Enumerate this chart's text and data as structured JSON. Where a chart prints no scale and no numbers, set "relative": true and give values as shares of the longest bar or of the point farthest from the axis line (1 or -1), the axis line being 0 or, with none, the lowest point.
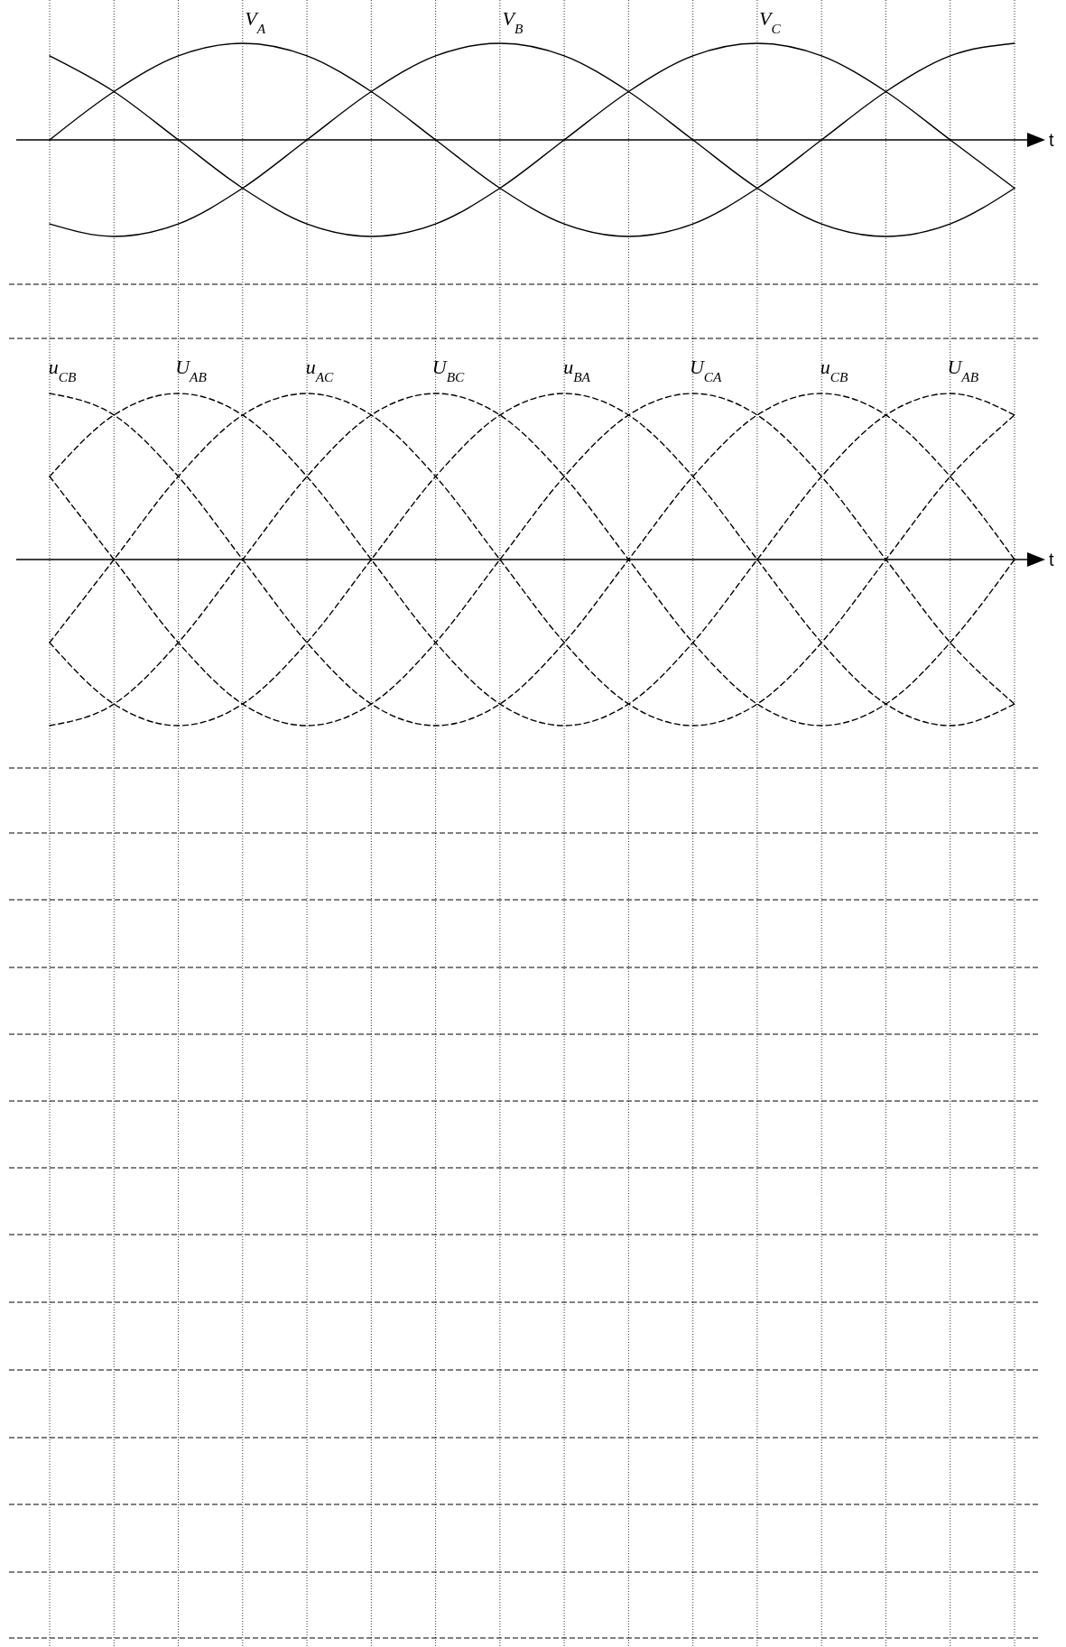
{
  "chart_data": [
    {
      "type": "line",
      "relative": true,
      "xlabel": "t",
      "grid": "x",
      "line_style": "solid",
      "marker": "none",
      "categories": [
        null,
        null,
        null,
        null,
        null,
        null,
        null,
        null,
        null,
        null,
        null,
        null,
        null,
        null,
        null,
        null
      ],
      "series": [
        {
          "name": "V$_{A}$",
          "color": "#000000",
          "values": [
            0,
            0.5,
            0.87,
            1,
            0.87,
            0.5,
            0,
            -0.5,
            -0.87,
            -1,
            -0.87,
            -0.5,
            0,
            0.5,
            0.87,
            1
          ]
        },
        {
          "name": "V$_{B}$",
          "color": "#000000",
          "values": [
            -0.87,
            -1,
            -0.87,
            -0.5,
            0,
            0.5,
            0.87,
            1,
            0.87,
            0.5,
            0,
            -0.5,
            -0.87,
            -1,
            -0.87,
            -0.5
          ]
        },
        {
          "name": "V$_{C}$",
          "color": "#000000",
          "values": [
            0.87,
            0.5,
            0,
            -0.5,
            -0.87,
            -1,
            -0.87,
            -0.5,
            0,
            0.5,
            0.87,
            1,
            0.87,
            0.5,
            0,
            -0.5
          ]
        }
      ]
    },
    {
      "type": "line",
      "relative": true,
      "xlabel": "t",
      "grid": "x",
      "line_style": "dashed",
      "marker": "none",
      "categories": [
        null,
        null,
        null,
        null,
        null,
        null,
        null,
        null,
        null,
        null,
        null,
        null,
        null,
        null,
        null,
        null
      ],
      "series": [
        {
          "name": "u$_{CB}$",
          "color": "#000000",
          "values": [
            1,
            0.87,
            0.5,
            0,
            -0.5,
            -0.87,
            -1,
            -0.87,
            -0.5,
            0,
            0.5,
            0.87,
            1,
            0.87,
            0.5,
            0
          ]
        },
        {
          "name": "U$_{AB}$",
          "color": "#000000",
          "values": [
            0.5,
            0.87,
            1,
            0.87,
            0.5,
            0,
            -0.5,
            -0.87,
            -1,
            -0.87,
            -0.5,
            0,
            0.5,
            0.87,
            1,
            0.87
          ]
        },
        {
          "name": "u$_{AC}$",
          "color": "#000000",
          "values": [
            -0.5,
            0,
            0.5,
            0.87,
            1,
            0.87,
            0.5,
            0,
            -0.5,
            -0.87,
            -1,
            -0.87,
            -0.5,
            0,
            0.5,
            0.87
          ]
        },
        {
          "name": "U$_{BC}$",
          "color": "#000000",
          "values": [
            -1,
            -0.87,
            -0.5,
            0,
            0.5,
            0.87,
            1,
            0.87,
            0.5,
            0,
            -0.5,
            -0.87,
            -1,
            -0.87,
            -0.5,
            0
          ]
        },
        {
          "name": "u$_{BA}$",
          "color": "#000000",
          "values": [
            -0.5,
            -0.87,
            -1,
            -0.87,
            -0.5,
            0,
            0.5,
            0.87,
            1,
            0.87,
            0.5,
            0,
            -0.5,
            -0.87,
            -1,
            -0.87
          ]
        },
        {
          "name": "U$_{CA}$",
          "color": "#000000",
          "values": [
            0.5,
            0,
            -0.5,
            -0.87,
            -1,
            -0.87,
            -0.5,
            0,
            0.5,
            0.87,
            1,
            0.87,
            0.5,
            0,
            -0.5,
            -0.87
          ]
        }
      ]
    }
  ]
}
